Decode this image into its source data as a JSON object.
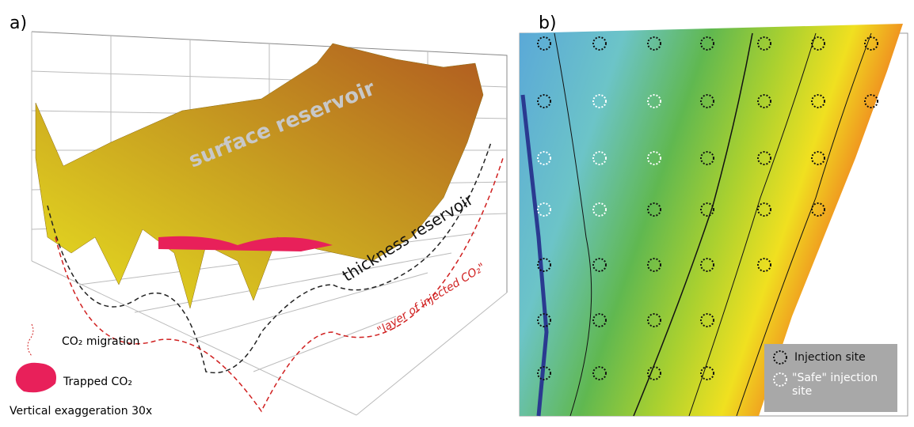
{
  "panel_a": {
    "label": "a)",
    "surface_label": "surface reservoir",
    "thickness_label": "thickness reservoir",
    "layer_label": "\"layer of injected CO₂\"",
    "legend": {
      "migration": "CO₂ migration",
      "trapped": "Trapped CO₂",
      "note": "Vertical exaggeration 30x"
    }
  },
  "panel_b": {
    "label": "b)",
    "legend": {
      "injection": "Injection site",
      "safe": "\"Safe\" injection site"
    }
  }
}
